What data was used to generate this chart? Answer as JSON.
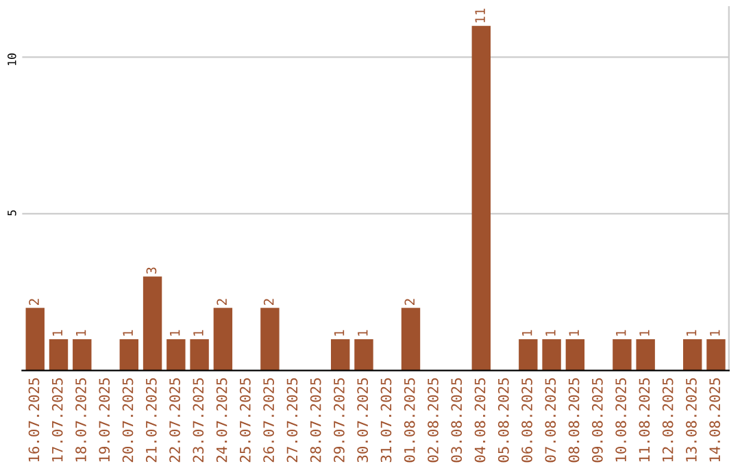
{
  "chart_data": {
    "type": "bar",
    "categories": [
      "16.07.2025",
      "17.07.2025",
      "18.07.2025",
      "19.07.2025",
      "20.07.2025",
      "21.07.2025",
      "22.07.2025",
      "23.07.2025",
      "24.07.2025",
      "25.07.2025",
      "26.07.2025",
      "27.07.2025",
      "28.07.2025",
      "29.07.2025",
      "30.07.2025",
      "31.07.2025",
      "01.08.2025",
      "02.08.2025",
      "03.08.2025",
      "04.08.2025",
      "05.08.2025",
      "06.08.2025",
      "07.08.2025",
      "08.08.2025",
      "09.08.2025",
      "10.08.2025",
      "11.08.2025",
      "12.08.2025",
      "13.08.2025",
      "14.08.2025"
    ],
    "values": [
      2,
      1,
      1,
      0,
      1,
      3,
      1,
      1,
      2,
      0,
      2,
      0,
      0,
      1,
      1,
      0,
      2,
      0,
      0,
      11,
      0,
      1,
      1,
      1,
      0,
      1,
      1,
      0,
      1,
      1
    ],
    "value_labels": [
      "2",
      "1",
      "1",
      null,
      "1",
      "3",
      "1",
      "1",
      "2",
      null,
      "2",
      null,
      null,
      "1",
      "1",
      null,
      "2",
      null,
      null,
      "11",
      null,
      "1",
      "1",
      "1",
      null,
      "1",
      "1",
      null,
      "1",
      "1"
    ],
    "color": "#a0522d",
    "ylim": [
      0,
      11.6
    ],
    "yticks": [
      5,
      10
    ],
    "grid": "y"
  }
}
